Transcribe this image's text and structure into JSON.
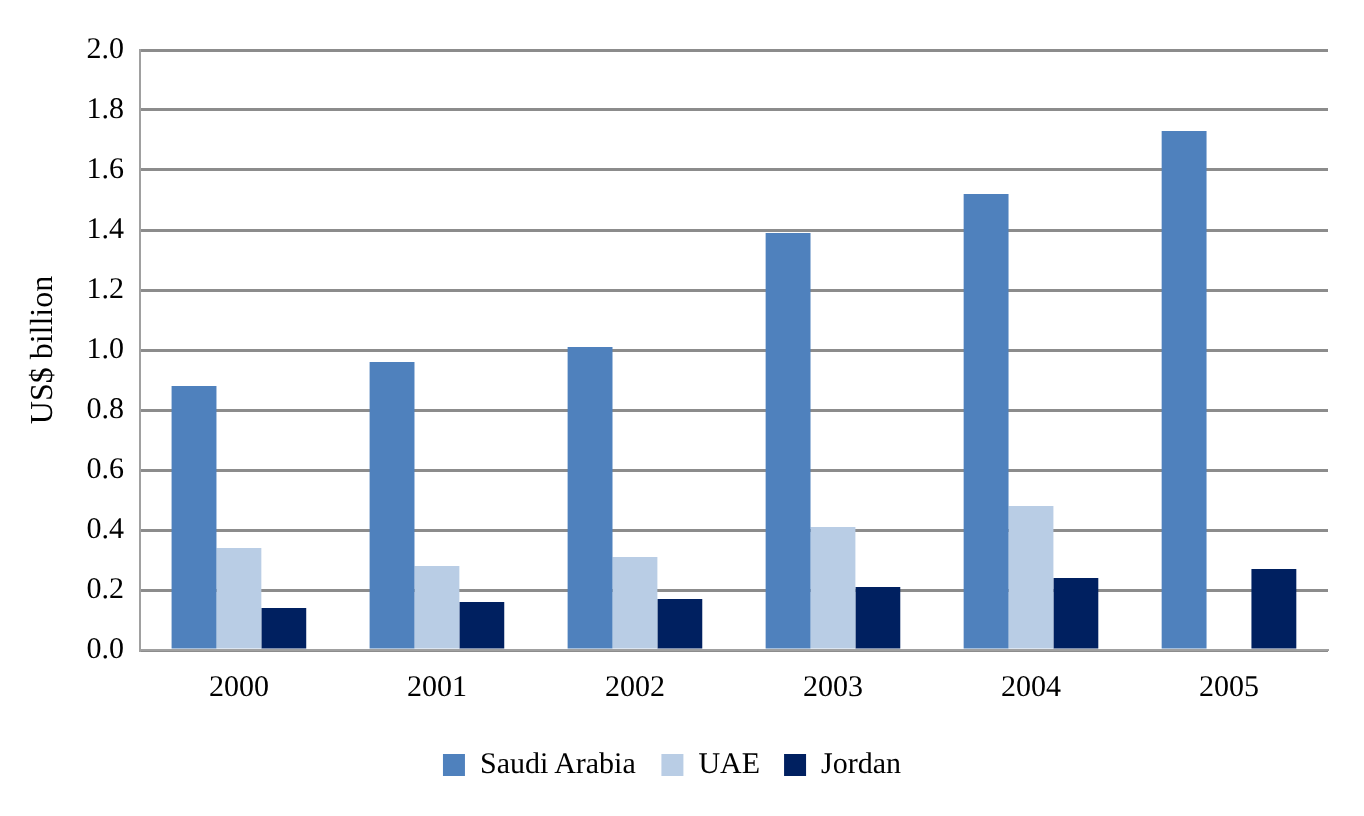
{
  "chart_data": {
    "type": "bar",
    "ylabel": "US$ billion",
    "categories": [
      "2000",
      "2001",
      "2002",
      "2003",
      "2004",
      "2005"
    ],
    "series": [
      {
        "name": "Saudi Arabia",
        "color": "#4f81bd",
        "values": [
          0.88,
          0.96,
          1.01,
          1.39,
          1.52,
          1.73
        ]
      },
      {
        "name": "UAE",
        "color": "#b9cde5",
        "values": [
          0.34,
          0.28,
          0.31,
          0.41,
          0.48,
          null
        ]
      },
      {
        "name": "Jordan",
        "color": "#002060",
        "values": [
          0.14,
          0.16,
          0.17,
          0.21,
          0.24,
          0.27
        ]
      }
    ],
    "ylim": [
      0,
      2.0
    ],
    "yticks": [
      {
        "value": 0,
        "label": "0.0"
      },
      {
        "value": 0.2,
        "label": "0.2"
      },
      {
        "value": 0.4,
        "label": "0.4"
      },
      {
        "value": 0.6,
        "label": "0.6"
      },
      {
        "value": 0.8,
        "label": "0.8"
      },
      {
        "value": 1.0,
        "label": "1.0"
      },
      {
        "value": 1.2,
        "label": "1.2"
      },
      {
        "value": 1.4,
        "label": "1.4"
      },
      {
        "value": 1.6,
        "label": "1.6"
      },
      {
        "value": 1.8,
        "label": "1.8"
      },
      {
        "value": 2.0,
        "label": "2.0"
      }
    ],
    "grid": "y",
    "legend": "bottom"
  }
}
